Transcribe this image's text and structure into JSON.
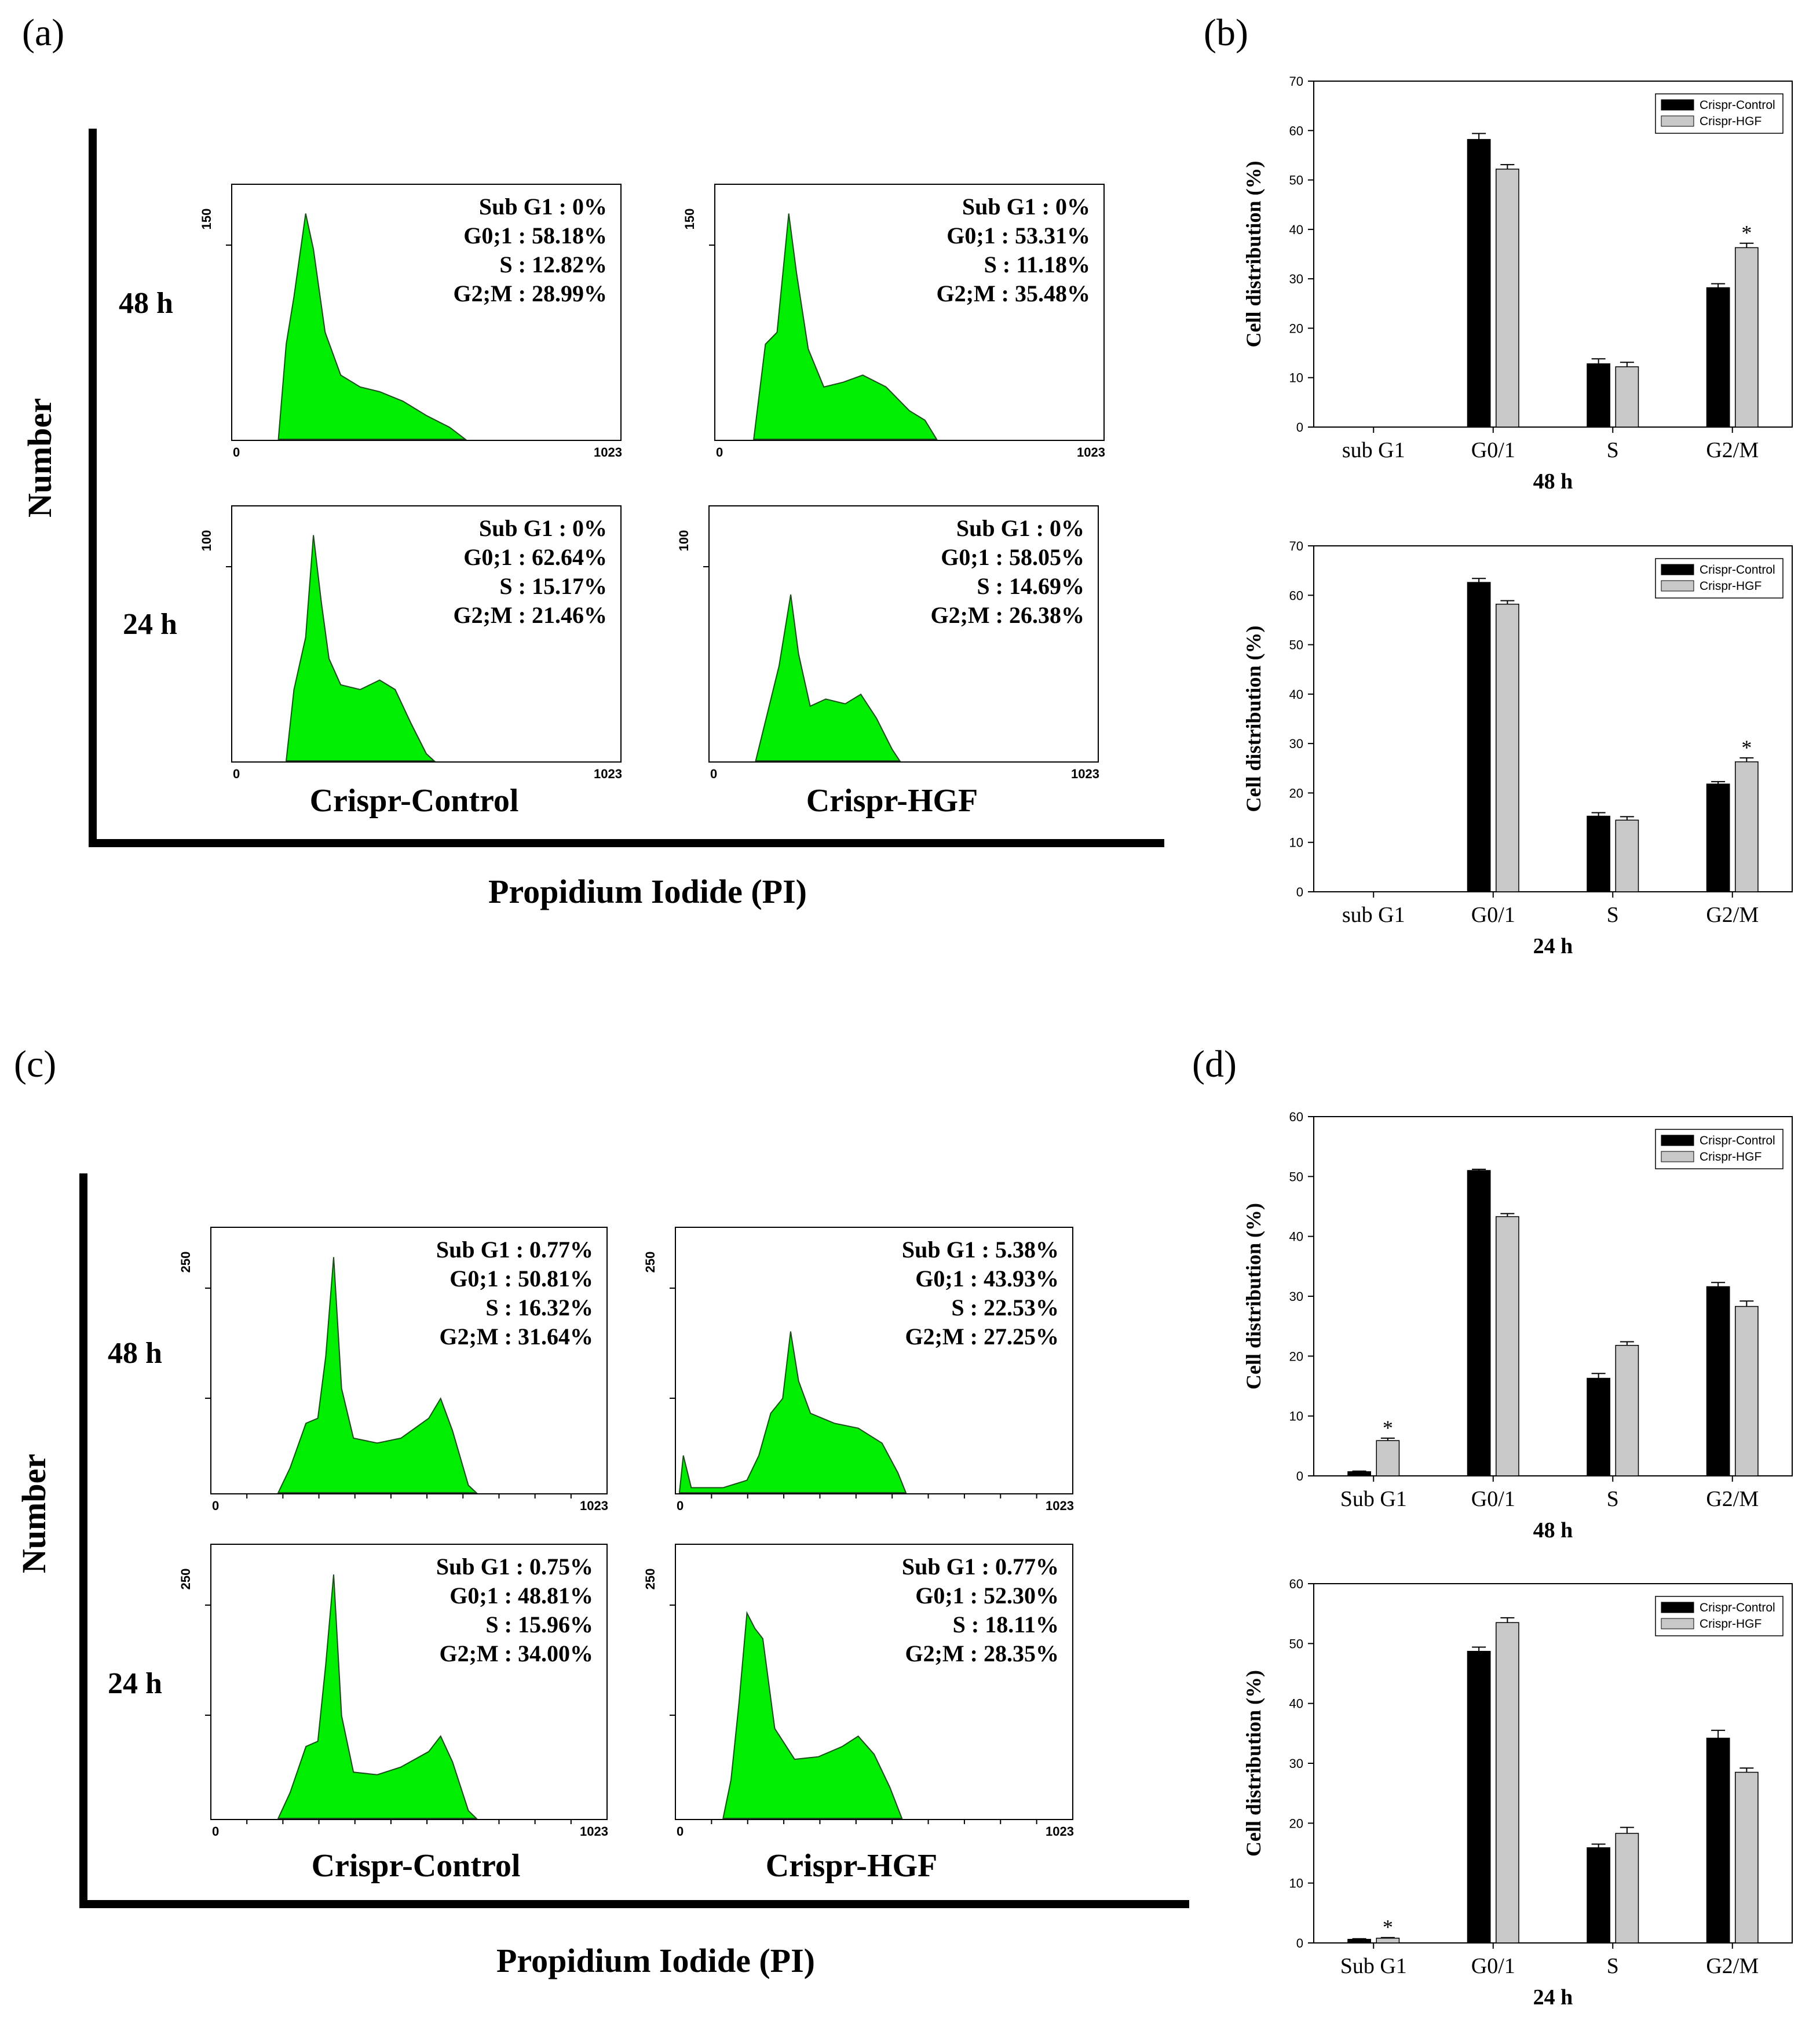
{
  "figure": {
    "panels": [
      {
        "id": "a",
        "label": "(a)",
        "y_axis_label": "Number",
        "x_axis_label": "Propidium Iodide (PI)",
        "columns": [
          "Crispr-Control",
          "Crispr-HGF"
        ],
        "rows": [
          "48 h",
          "24 h"
        ],
        "histograms": [
          {
            "row": 0,
            "col": 0,
            "ymax": "150",
            "xmin": "0",
            "xmax": "1023",
            "stats": [
              "Sub G1 : 0%",
              "G0;1 : 58.18%",
              "S : 12.82%",
              "G2;M : 28.99%"
            ]
          },
          {
            "row": 0,
            "col": 1,
            "ymax": "150",
            "xmin": "0",
            "xmax": "1023",
            "stats": [
              "Sub G1 : 0%",
              "G0;1 : 53.31%",
              "S : 11.18%",
              "G2;M : 35.48%"
            ]
          },
          {
            "row": 1,
            "col": 0,
            "ymax": "100",
            "xmin": "0",
            "xmax": "1023",
            "stats": [
              "Sub G1 : 0%",
              "G0;1 : 62.64%",
              "S : 15.17%",
              "G2;M : 21.46%"
            ]
          },
          {
            "row": 1,
            "col": 1,
            "ymax": "100",
            "xmin": "0",
            "xmax": "1023",
            "stats": [
              "Sub G1 : 0%",
              "G0;1 : 58.05%",
              "S : 14.69%",
              "G2;M : 26.38%"
            ]
          }
        ]
      },
      {
        "id": "c",
        "label": "(c)",
        "y_axis_label": "Number",
        "x_axis_label": "Propidium Iodide (PI)",
        "columns": [
          "Crispr-Control",
          "Crispr-HGF"
        ],
        "rows": [
          "48 h",
          "24 h"
        ],
        "histograms": [
          {
            "row": 0,
            "col": 0,
            "ymax": "250",
            "xmin": "0",
            "xmax": "1023",
            "stats": [
              "Sub G1 : 0.77%",
              "G0;1 : 50.81%",
              "S : 16.32%",
              "G2;M : 31.64%"
            ]
          },
          {
            "row": 0,
            "col": 1,
            "ymax": "250",
            "xmin": "0",
            "xmax": "1023",
            "stats": [
              "Sub G1 : 5.38%",
              "G0;1 : 43.93%",
              "S : 22.53%",
              "G2;M : 27.25%"
            ]
          },
          {
            "row": 1,
            "col": 0,
            "ymax": "250",
            "xmin": "0",
            "xmax": "1023",
            "stats": [
              "Sub G1 : 0.75%",
              "G0;1 : 48.81%",
              "S : 15.96%",
              "G2;M : 34.00%"
            ]
          },
          {
            "row": 1,
            "col": 1,
            "ymax": "250",
            "xmin": "0",
            "xmax": "1023",
            "stats": [
              "Sub G1 : 0.77%",
              "G0;1 : 52.30%",
              "S : 18.11%",
              "G2;M : 28.35%"
            ]
          }
        ]
      },
      {
        "id": "b",
        "label": "(b)"
      },
      {
        "id": "d",
        "label": "(d)"
      }
    ],
    "colors": {
      "histogram_fill": "#00ee00",
      "control_bar": "#000000",
      "hgf_bar": "#c8c8c8"
    }
  },
  "chart_data": [
    {
      "panel": "b",
      "type": "bar",
      "title": "",
      "xlabel": "48 h",
      "ylabel": "Cell distribution (%)",
      "ylim": [
        0,
        70
      ],
      "yticks": [
        0,
        10,
        20,
        30,
        40,
        50,
        60,
        70
      ],
      "categories": [
        "sub G1",
        "G0/1",
        "S",
        "G2/M"
      ],
      "legend_position": "top-right",
      "grid": false,
      "series": [
        {
          "name": "Crispr-Control",
          "values": [
            0,
            58.2,
            12.8,
            28.2
          ],
          "errors": [
            0,
            1.2,
            1.0,
            0.8
          ]
        },
        {
          "name": "Crispr-HGF",
          "values": [
            0,
            52.2,
            12.2,
            36.3
          ],
          "errors": [
            0,
            0.9,
            0.9,
            0.9
          ]
        }
      ],
      "significance": [
        {
          "category": "G2/M",
          "series": "Crispr-HGF",
          "mark": "*"
        }
      ]
    },
    {
      "panel": "b",
      "type": "bar",
      "title": "",
      "xlabel": "24 h",
      "ylabel": "Cell distribution (%)",
      "ylim": [
        0,
        70
      ],
      "yticks": [
        0,
        10,
        20,
        30,
        40,
        50,
        60,
        70
      ],
      "categories": [
        "sub G1",
        "G0/1",
        "S",
        "G2/M"
      ],
      "legend_position": "top-right",
      "grid": false,
      "series": [
        {
          "name": "Crispr-Control",
          "values": [
            0,
            62.6,
            15.3,
            21.8
          ],
          "errors": [
            0,
            0.8,
            0.7,
            0.5
          ]
        },
        {
          "name": "Crispr-HGF",
          "values": [
            0,
            58.2,
            14.5,
            26.3
          ],
          "errors": [
            0,
            0.7,
            0.7,
            0.8
          ]
        }
      ],
      "significance": [
        {
          "category": "G2/M",
          "series": "Crispr-HGF",
          "mark": "*"
        }
      ]
    },
    {
      "panel": "d",
      "type": "bar",
      "title": "",
      "xlabel": "48 h",
      "ylabel": "Cell distribution (%)",
      "ylim": [
        0,
        60
      ],
      "yticks": [
        0,
        10,
        20,
        30,
        40,
        50,
        60
      ],
      "categories": [
        "Sub G1",
        "G0/1",
        "S",
        "G2/M"
      ],
      "legend_position": "top-right",
      "grid": false,
      "series": [
        {
          "name": "Crispr-Control",
          "values": [
            0.7,
            51.0,
            16.3,
            31.6
          ],
          "errors": [
            0.1,
            0.2,
            0.8,
            0.7
          ]
        },
        {
          "name": "Crispr-HGF",
          "values": [
            5.9,
            43.3,
            21.8,
            28.3
          ],
          "errors": [
            0.4,
            0.5,
            0.6,
            0.9
          ]
        }
      ],
      "significance": [
        {
          "category": "Sub G1",
          "series": "Crispr-HGF",
          "mark": "*"
        }
      ]
    },
    {
      "panel": "d",
      "type": "bar",
      "title": "",
      "xlabel": "24 h",
      "ylabel": "Cell distribution (%)",
      "ylim": [
        0,
        60
      ],
      "yticks": [
        0,
        10,
        20,
        30,
        40,
        50,
        60
      ],
      "categories": [
        "Sub G1",
        "G0/1",
        "S",
        "G2/M"
      ],
      "legend_position": "top-right",
      "grid": false,
      "series": [
        {
          "name": "Crispr-Control",
          "values": [
            0.6,
            48.7,
            15.9,
            34.2
          ],
          "errors": [
            0.1,
            0.7,
            0.6,
            1.3
          ]
        },
        {
          "name": "Crispr-HGF",
          "values": [
            0.8,
            53.5,
            18.3,
            28.5
          ],
          "errors": [
            0.1,
            0.8,
            1.0,
            0.7
          ]
        }
      ],
      "significance": [
        {
          "category": "Sub G1",
          "series": "Crispr-HGF",
          "mark": "*"
        }
      ]
    }
  ]
}
